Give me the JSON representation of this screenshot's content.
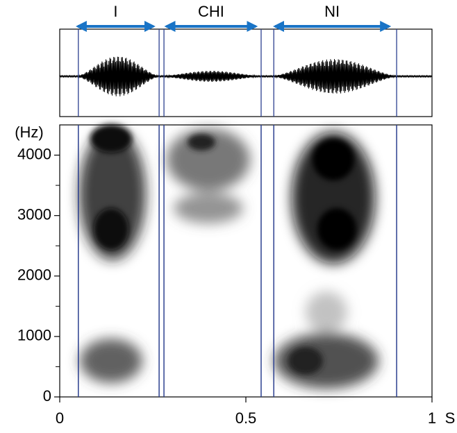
{
  "chart_data": {
    "type": "spectrogram",
    "segments": [
      {
        "label": "I",
        "start": 0.045,
        "end": 0.255
      },
      {
        "label": "CHI",
        "start": 0.283,
        "end": 0.53
      },
      {
        "label": "NI",
        "start": 0.575,
        "end": 0.888
      }
    ],
    "boundaries": [
      0.05,
      0.267,
      0.28,
      0.541,
      0.575,
      0.905
    ],
    "xlim": [
      0,
      1
    ],
    "xticks": [
      0,
      0.5,
      1
    ],
    "x_unit": "S",
    "ylim": [
      0,
      4500
    ],
    "yticks": [
      0,
      1000,
      2000,
      3000,
      4000
    ],
    "yminor_ticks": [
      500,
      1500,
      2500,
      3500
    ],
    "ylabel": "(Hz)",
    "arrow_color": "#1a74c6",
    "boundary_color": "#2b3f8f"
  }
}
